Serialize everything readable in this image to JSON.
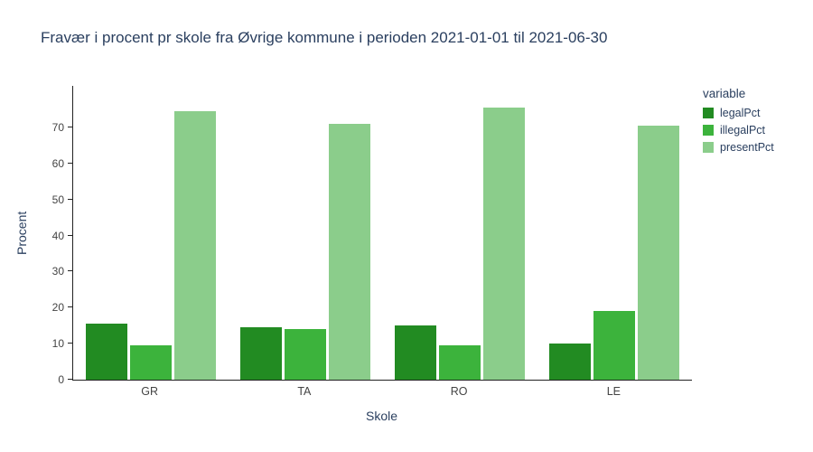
{
  "chart_data": {
    "type": "bar",
    "title": "Fravær i procent pr skole fra Øvrige kommune i perioden 2021-01-01 til 2021-06-30",
    "xlabel": "Skole",
    "ylabel": "Procent",
    "categories": [
      "GR",
      "TA",
      "RO",
      "LE"
    ],
    "series": [
      {
        "name": "legalPct",
        "color": "#228b22",
        "values": [
          15.5,
          14.5,
          15.0,
          10.0
        ]
      },
      {
        "name": "illegalPct",
        "color": "#3cb33c",
        "values": [
          9.5,
          14.0,
          9.5,
          19.0
        ]
      },
      {
        "name": "presentPct",
        "color": "#8bcd8b",
        "values": [
          74.5,
          71.0,
          75.5,
          70.5
        ]
      }
    ],
    "ylim": [
      0,
      81.5
    ],
    "yticks": [
      0,
      10,
      20,
      30,
      40,
      50,
      60,
      70
    ],
    "grid": false,
    "legend_title": "variable",
    "legend_position": "right"
  }
}
